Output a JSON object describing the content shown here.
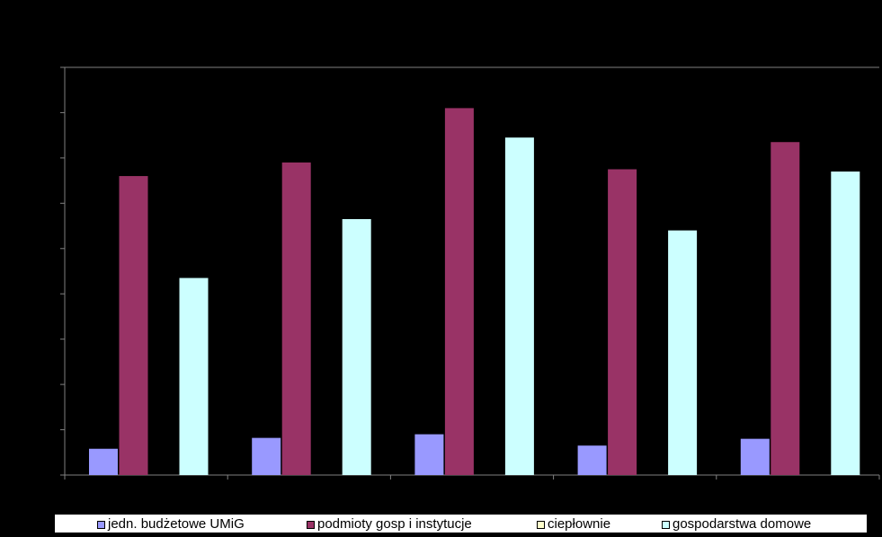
{
  "chart_data": {
    "type": "bar",
    "title": "",
    "xlabel": "",
    "ylabel": "",
    "categories": [
      "",
      "",
      "",
      "",
      ""
    ],
    "ylim": [
      0,
      9
    ],
    "grid": false,
    "legend_position": "bottom",
    "series": [
      {
        "name": "jedn. budżetowe UMiG",
        "color": "#9999ff",
        "values": [
          0.58,
          0.82,
          0.9,
          0.65,
          0.8
        ]
      },
      {
        "name": "podmioty gosp i instytucje",
        "color": "#993366",
        "values": [
          6.6,
          6.9,
          8.1,
          6.75,
          7.35
        ]
      },
      {
        "name": "ciepłownie",
        "color": "#ffffcc",
        "values": [
          0,
          0,
          0,
          0,
          0
        ]
      },
      {
        "name": "gospodarstwa domowe",
        "color": "#ccffff",
        "values": [
          4.35,
          5.65,
          7.45,
          5.4,
          6.7
        ]
      }
    ]
  },
  "colors": {
    "background": "#000000",
    "axis": "#808080",
    "legend_background": "#ffffff"
  }
}
